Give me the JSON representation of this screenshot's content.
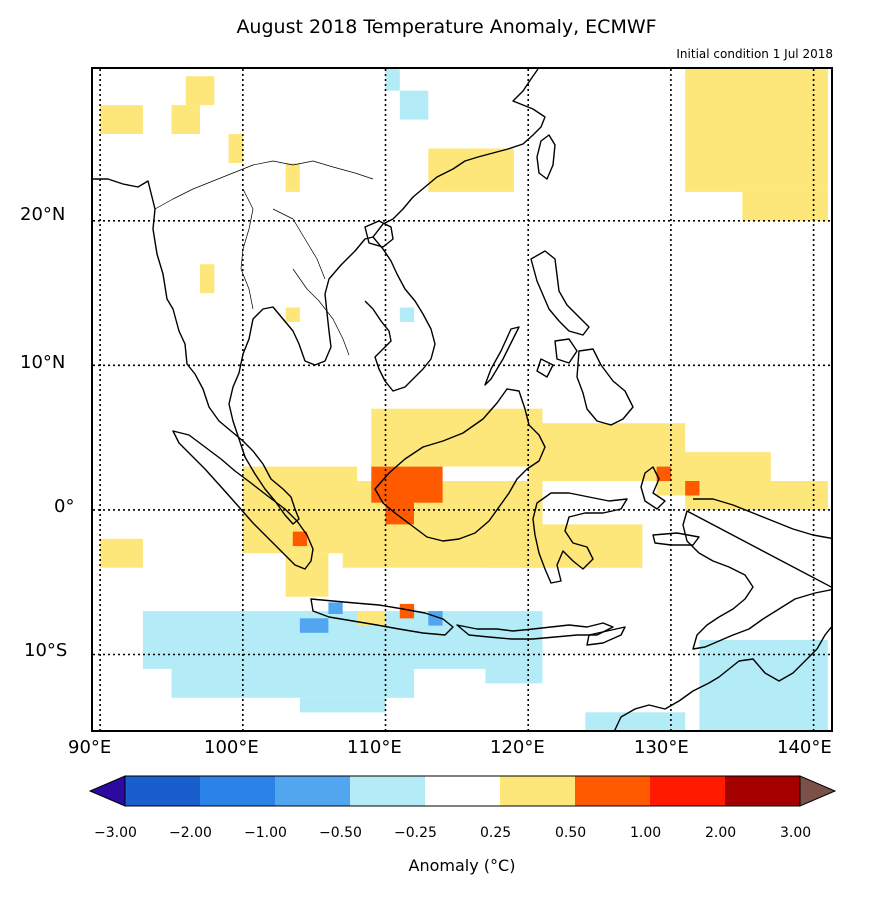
{
  "title": "August 2018 Temperature Anomaly, ECMWF",
  "subtitle": "Initial condition 1 Jul 2018",
  "lat_labels": [
    "20°N",
    "10°N",
    "0°",
    "10°S"
  ],
  "lon_labels": [
    "90°E",
    "100°E",
    "110°E",
    "120°E",
    "130°E",
    "140°E"
  ],
  "colorbar": {
    "title": "Anomaly (°C)",
    "ticks": [
      "−3.00",
      "−2.00",
      "−1.00",
      "−0.50",
      "−0.25",
      "0.25",
      "0.50",
      "1.00",
      "2.00",
      "3.00"
    ],
    "colors": [
      "#1a5ece",
      "#2b82e8",
      "#52a6f0",
      "#b3ecf6",
      "#ffffff",
      "#fde77a",
      "#ff5a00",
      "#ff1a00",
      "#a50000"
    ],
    "under_color": "#2a0aa0",
    "over_color": "#7a5048"
  },
  "colors": {
    "warm": "#fde77a",
    "hot": "#ff5a00",
    "cool": "#b3ecf6",
    "cold": "#52a6f0",
    "coast": "#000000"
  },
  "extent": {
    "lon_min": 89.5,
    "lon_max": 141.5,
    "lat_min": -15.5,
    "lat_max": 30.5
  },
  "gridlines": {
    "lons": [
      90,
      100,
      110,
      120,
      130,
      140
    ],
    "lats": [
      20,
      10,
      0,
      -10
    ]
  },
  "anomaly_cells": {
    "warm": [
      [
        131,
        141,
        22,
        30.5
      ],
      [
        135,
        141,
        20,
        22
      ],
      [
        96,
        98,
        28,
        30
      ],
      [
        95,
        97,
        26,
        28
      ],
      [
        90,
        93,
        26,
        28
      ],
      [
        99,
        100,
        24,
        26
      ],
      [
        103,
        104,
        22,
        24
      ],
      [
        113,
        119,
        22,
        25
      ],
      [
        97,
        98,
        15,
        17
      ],
      [
        103,
        104,
        13,
        14
      ],
      [
        109,
        121,
        3,
        7
      ],
      [
        120,
        131,
        2,
        6
      ],
      [
        129,
        137,
        1,
        4
      ],
      [
        131,
        141,
        0,
        2
      ],
      [
        100,
        108,
        -3,
        3
      ],
      [
        107,
        121,
        -4,
        2
      ],
      [
        117,
        128,
        -4,
        -1
      ],
      [
        90,
        93,
        -4,
        -2
      ],
      [
        103,
        106,
        -6,
        -3
      ],
      [
        108,
        110,
        -8,
        -7
      ]
    ],
    "hot": [
      [
        109,
        114,
        0.5,
        3
      ],
      [
        110,
        112,
        -1,
        1
      ],
      [
        103.5,
        104.5,
        -2.5,
        -1.5
      ],
      [
        111,
        112,
        -7.5,
        -6.5
      ],
      [
        129,
        130,
        2,
        3
      ],
      [
        131,
        132,
        1,
        2
      ]
    ],
    "cool": [
      [
        93,
        121,
        -11,
        -7
      ],
      [
        95,
        112,
        -13,
        -11
      ],
      [
        104,
        110,
        -14,
        -13
      ],
      [
        117,
        121,
        -12,
        -11
      ],
      [
        110,
        111,
        29,
        31
      ],
      [
        111,
        113,
        27,
        29
      ],
      [
        111,
        112,
        13,
        14
      ],
      [
        132,
        141,
        -15.5,
        -9
      ],
      [
        124,
        131,
        -15.5,
        -14
      ]
    ],
    "cold": [
      [
        104,
        106,
        -8.5,
        -7.5
      ],
      [
        106,
        107,
        -7.2,
        -6.4
      ],
      [
        113,
        114,
        -8,
        -7
      ]
    ]
  }
}
